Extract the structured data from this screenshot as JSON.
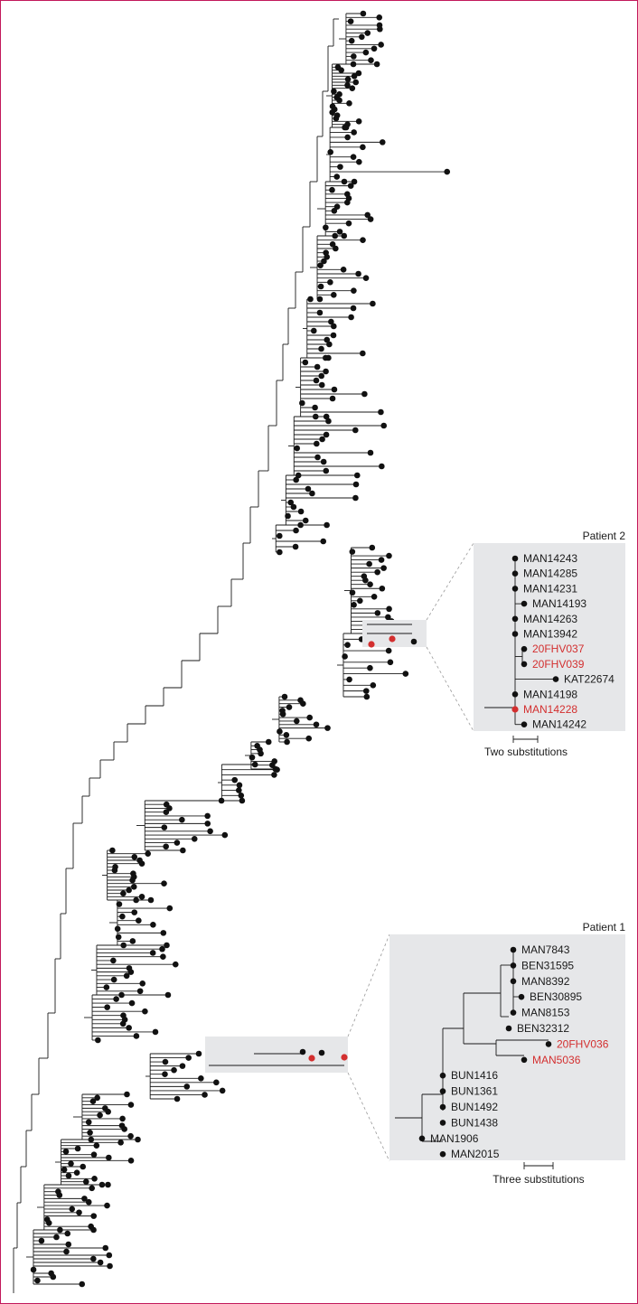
{
  "colors": {
    "border": "#c2185b",
    "highlight": "#d32f2f",
    "inset_bg": "#e6e7e9",
    "branch": "#1a1a1a"
  },
  "patient2": {
    "title": "Patient 2",
    "scale_label": "Two substitutions",
    "tips": [
      {
        "label": "MAN14243",
        "highlight": false
      },
      {
        "label": "MAN14285",
        "highlight": false
      },
      {
        "label": "MAN14231",
        "highlight": false
      },
      {
        "label": "MAN14193",
        "highlight": false
      },
      {
        "label": "MAN14263",
        "highlight": false
      },
      {
        "label": "MAN13942",
        "highlight": false
      },
      {
        "label": "20FHV037",
        "highlight": true
      },
      {
        "label": "20FHV039",
        "highlight": true
      },
      {
        "label": "KAT22674",
        "highlight": false
      },
      {
        "label": "MAN14198",
        "highlight": false
      },
      {
        "label": "MAN14228",
        "highlight": true
      },
      {
        "label": "MAN14242",
        "highlight": false
      }
    ]
  },
  "patient1": {
    "title": "Patient 1",
    "scale_label": "Three substitutions",
    "tips": [
      {
        "label": "MAN7843",
        "highlight": false
      },
      {
        "label": "BEN31595",
        "highlight": false
      },
      {
        "label": "MAN8392",
        "highlight": false
      },
      {
        "label": "BEN30895",
        "highlight": false
      },
      {
        "label": "MAN8153",
        "highlight": false
      },
      {
        "label": "BEN32312",
        "highlight": false
      },
      {
        "label": "20FHV036",
        "highlight": true
      },
      {
        "label": "MAN5036",
        "highlight": true
      },
      {
        "label": "BUN1416",
        "highlight": false
      },
      {
        "label": "BUN1361",
        "highlight": false
      },
      {
        "label": "BUN1492",
        "highlight": false
      },
      {
        "label": "BUN1438",
        "highlight": false
      },
      {
        "label": "MAN1906",
        "highlight": false
      },
      {
        "label": "MAN2015",
        "highlight": false
      }
    ]
  }
}
